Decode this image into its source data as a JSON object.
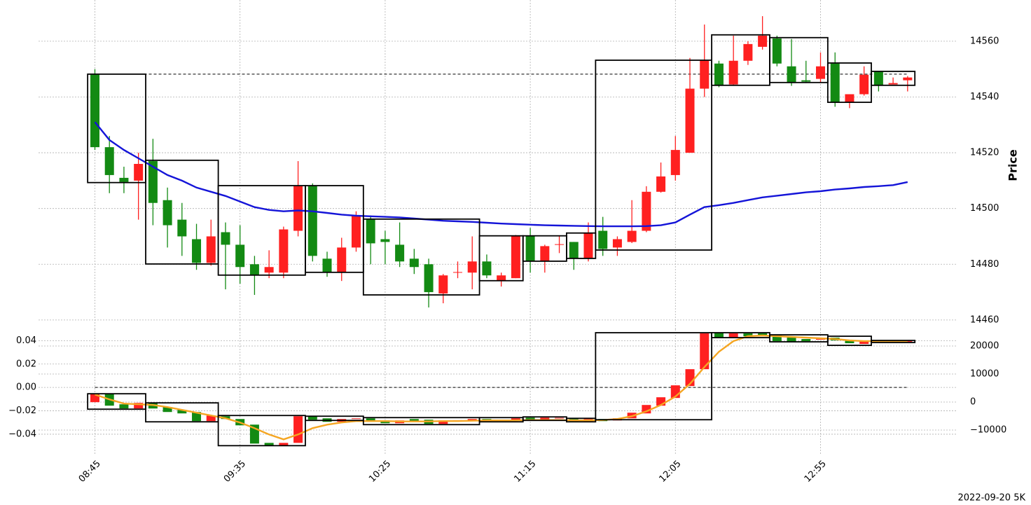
{
  "chart_data": [
    {
      "type": "candlestick",
      "ylabel": "Price",
      "axis_side": "right",
      "grid": true,
      "up_color": "#ff2020",
      "down_color": "#138a13",
      "ylim": [
        14456.7,
        14574.8
      ],
      "yticks": [
        14460,
        14480,
        14500,
        14520,
        14540,
        14560
      ],
      "open": [
        14548,
        14522,
        14511,
        14510,
        14517,
        14503,
        14496,
        14489,
        14480.5,
        14491.5,
        14487,
        14480,
        14477,
        14477,
        14492,
        14508,
        14482,
        14477,
        14486,
        14496,
        14489,
        14487,
        14482,
        14480,
        14469.5,
        14477,
        14477,
        14481,
        14474,
        14475,
        14490,
        14481,
        14487,
        14488,
        14482,
        14492,
        14486,
        14488,
        14492,
        14506,
        14512,
        14520,
        14543,
        14552,
        14544.5,
        14553,
        14558,
        14561,
        14551,
        14546,
        14546.5,
        14552,
        14538,
        14541,
        14549,
        14544.5,
        14546
      ],
      "high": [
        14550,
        14526,
        14515,
        14520,
        14525,
        14507.5,
        14502,
        14494.5,
        14496,
        14495,
        14494,
        14483,
        14485,
        14493.5,
        14517,
        14509,
        14484.5,
        14489.5,
        14499,
        14497.5,
        14492,
        14495,
        14485.5,
        14482,
        14476.5,
        14481,
        14490,
        14483.5,
        14477,
        14490.5,
        14493,
        14487,
        14490,
        14488,
        14495,
        14497,
        14490,
        14503,
        14508,
        14516.5,
        14526,
        14554,
        14566,
        14553,
        14562,
        14560,
        14569,
        14562,
        14560.8,
        14553,
        14556,
        14556,
        14541,
        14551,
        14549,
        14547,
        14547.5
      ],
      "low": [
        14521,
        14505.5,
        14505.5,
        14496,
        14494,
        14486,
        14483,
        14478,
        14479.5,
        14471,
        14473,
        14469,
        14475,
        14475,
        14490,
        14481,
        14475.5,
        14474,
        14484.5,
        14480,
        14480,
        14479,
        14476.5,
        14464.5,
        14466,
        14475,
        14471,
        14475,
        14472,
        14475,
        14477,
        14477,
        14484,
        14478,
        14481,
        14483,
        14483,
        14487.6,
        14491.5,
        14505.7,
        14510,
        14520,
        14540,
        14543.5,
        14544,
        14551.5,
        14557,
        14551,
        14544,
        14545,
        14545,
        14536.5,
        14536,
        14540.5,
        14542,
        14544.5,
        14542
      ],
      "close": [
        14522,
        14512,
        14509.5,
        14516,
        14502,
        14494,
        14490,
        14480.5,
        14490,
        14487,
        14479,
        14476,
        14479,
        14492.5,
        14508,
        14483,
        14477,
        14486,
        14497.5,
        14487.5,
        14488,
        14481,
        14479,
        14470,
        14476,
        14477.2,
        14481,
        14476,
        14476,
        14490,
        14481,
        14486.5,
        14487.2,
        14482,
        14491,
        14485.5,
        14489,
        14492,
        14506,
        14511.5,
        14521,
        14543,
        14553,
        14544,
        14553,
        14559,
        14562,
        14552,
        14545,
        14545.5,
        14551,
        14538,
        14541,
        14548,
        14544,
        14545,
        14547
      ],
      "line": {
        "color": "#1414d8",
        "values": [
          14531,
          14524.6,
          14521,
          14518,
          14515,
          14512,
          14510,
          14507.5,
          14506,
          14504.5,
          14502.5,
          14500.5,
          14499.5,
          14499,
          14499.3,
          14499,
          14498.4,
          14497.8,
          14497.4,
          14497.2,
          14497,
          14496.8,
          14496.4,
          14496,
          14495.6,
          14495.4,
          14495.2,
          14494.9,
          14494.6,
          14494.4,
          14494.2,
          14494,
          14493.9,
          14493.8,
          14493.7,
          14493.6,
          14493.6,
          14493.6,
          14493.7,
          14494,
          14495,
          14497.8,
          14500.5,
          14501.2,
          14502,
          14503,
          14504,
          14504.6,
          14505.2,
          14505.8,
          14506.2,
          14506.8,
          14507.2,
          14507.7,
          14508,
          14508.4,
          14509.5
        ]
      },
      "hline": 14548.2,
      "boxes": [
        {
          "start": 0,
          "end": 3,
          "top": 14548.2,
          "bottom": 14509.3
        },
        {
          "start": 4,
          "end": 8,
          "top": 14517.3,
          "bottom": 14480.1
        },
        {
          "start": 9,
          "end": 14,
          "top": 14508.2,
          "bottom": 14476.1
        },
        {
          "start": 15,
          "end": 18,
          "top": 14508.2,
          "bottom": 14477.1
        },
        {
          "start": 19,
          "end": 26,
          "top": 14496.2,
          "bottom": 14469
        },
        {
          "start": 27,
          "end": 29,
          "top": 14490.2,
          "bottom": 14474.1
        },
        {
          "start": 30,
          "end": 32,
          "top": 14490.2,
          "bottom": 14481.1
        },
        {
          "start": 33,
          "end": 34,
          "top": 14491.2,
          "bottom": 14482.1
        },
        {
          "start": 35,
          "end": 42,
          "top": 14553.2,
          "bottom": 14485.1
        },
        {
          "start": 43,
          "end": 46,
          "top": 14562.3,
          "bottom": 14544.2
        },
        {
          "start": 47,
          "end": 50,
          "top": 14561.3,
          "bottom": 14545.2
        },
        {
          "start": 51,
          "end": 53,
          "top": 14552.2,
          "bottom": 14538.1
        },
        {
          "start": 54,
          "end": 56,
          "top": 14549.2,
          "bottom": 14544.2
        }
      ]
    },
    {
      "type": "candlestick",
      "grid": true,
      "up_color": "#ff2020",
      "down_color": "#138a13",
      "categories": [
        "08:45",
        null,
        null,
        null,
        null,
        null,
        null,
        null,
        null,
        null,
        "09:35",
        null,
        null,
        null,
        null,
        null,
        null,
        null,
        null,
        null,
        "10:25",
        null,
        null,
        null,
        null,
        null,
        null,
        null,
        null,
        null,
        "11:15",
        null,
        null,
        null,
        null,
        null,
        null,
        null,
        null,
        null,
        "12:05",
        null,
        null,
        null,
        null,
        null,
        null,
        null,
        null,
        null,
        "12:55",
        null,
        null,
        null,
        null,
        null,
        null
      ],
      "ylim": [
        -0.058,
        0.0498
      ],
      "yticks": [
        {
          "value": -0.04,
          "label": "−0.04"
        },
        {
          "value": -0.02,
          "label": "−0.02"
        },
        {
          "value": 0,
          "label": "0.00"
        },
        0.02,
        0.04
      ],
      "y2lim": [
        -19000,
        26000
      ],
      "y2ticks": [
        {
          "value": -10000,
          "label": "−10000"
        },
        0,
        10000,
        20000
      ],
      "open": [
        -0.0126,
        -0.0054,
        -0.0144,
        -0.018,
        -0.0132,
        -0.0168,
        -0.0192,
        -0.021,
        -0.0288,
        -0.0246,
        -0.027,
        -0.0318,
        -0.0474,
        -0.0498,
        -0.0474,
        -0.0246,
        -0.0264,
        -0.0294,
        -0.027,
        -0.0264,
        -0.0282,
        -0.0306,
        -0.027,
        -0.0276,
        -0.0312,
        -0.028,
        -0.0288,
        -0.027,
        -0.0276,
        -0.0282,
        -0.0258,
        -0.0276,
        -0.026,
        -0.027,
        -0.0288,
        -0.027,
        -0.0282,
        -0.0264,
        -0.0222,
        -0.0156,
        -0.009,
        0.0012,
        0.0156,
        0.0468,
        0.0426,
        0.0462,
        0.0462,
        0.045,
        0.0426,
        0.0414,
        0.0408,
        0.0426,
        0.0402,
        0.0372,
        0.0402,
        0.039,
        0.0396
      ],
      "close": [
        -0.0054,
        -0.0156,
        -0.018,
        -0.0132,
        -0.018,
        -0.021,
        -0.0222,
        -0.0288,
        -0.024,
        -0.027,
        -0.0324,
        -0.048,
        -0.0498,
        -0.0474,
        -0.0246,
        -0.0276,
        -0.0294,
        -0.027,
        -0.0264,
        -0.0294,
        -0.0306,
        -0.0282,
        -0.0288,
        -0.0312,
        -0.0282,
        -0.028,
        -0.027,
        -0.0288,
        -0.0282,
        -0.0264,
        -0.0276,
        -0.0258,
        -0.026,
        -0.0288,
        -0.027,
        -0.0288,
        -0.0264,
        -0.0216,
        -0.015,
        -0.0084,
        0.0018,
        0.0156,
        0.0462,
        0.0426,
        0.0462,
        0.0438,
        0.044,
        0.0396,
        0.039,
        0.0396,
        0.0426,
        0.0402,
        0.0378,
        0.0396,
        0.039,
        0.0396,
        0.0396
      ],
      "line": {
        "color": "#f5a623",
        "values": [
          -0.006,
          -0.0102,
          -0.0138,
          -0.0144,
          -0.015,
          -0.0168,
          -0.0192,
          -0.0216,
          -0.024,
          -0.0264,
          -0.03,
          -0.0348,
          -0.0402,
          -0.0444,
          -0.0402,
          -0.0348,
          -0.0318,
          -0.03,
          -0.0288,
          -0.0288,
          -0.0288,
          -0.0291,
          -0.0291,
          -0.0291,
          -0.0288,
          -0.0288,
          -0.0285,
          -0.0282,
          -0.0282,
          -0.0282,
          -0.0279,
          -0.0279,
          -0.0279,
          -0.0282,
          -0.0282,
          -0.0279,
          -0.027,
          -0.0246,
          -0.0204,
          -0.015,
          -0.0078,
          0.003,
          0.0174,
          0.0306,
          0.0396,
          0.0438,
          0.0444,
          0.0438,
          0.0432,
          0.0426,
          0.042,
          0.0414,
          0.0402,
          0.0396,
          0.0396,
          0.0396,
          0.0396
        ]
      },
      "hline": 0,
      "boxes": [
        {
          "start": 0,
          "end": 3,
          "top": -0.0054,
          "bottom": -0.0186
        },
        {
          "start": 4,
          "end": 8,
          "top": -0.0132,
          "bottom": -0.0294
        },
        {
          "start": 9,
          "end": 14,
          "top": -0.024,
          "bottom": -0.0498
        },
        {
          "start": 15,
          "end": 18,
          "top": -0.0246,
          "bottom": -0.0282
        },
        {
          "start": 19,
          "end": 26,
          "top": -0.0258,
          "bottom": -0.0318
        },
        {
          "start": 27,
          "end": 29,
          "top": -0.0258,
          "bottom": -0.0294
        },
        {
          "start": 30,
          "end": 32,
          "top": -0.0252,
          "bottom": -0.0282
        },
        {
          "start": 33,
          "end": 34,
          "top": -0.0264,
          "bottom": -0.0294
        },
        {
          "start": 35,
          "end": 42,
          "top": 0.0468,
          "bottom": -0.0276
        },
        {
          "start": 43,
          "end": 46,
          "top": 0.0468,
          "bottom": 0.0426
        },
        {
          "start": 47,
          "end": 50,
          "top": 0.045,
          "bottom": 0.039
        },
        {
          "start": 51,
          "end": 53,
          "top": 0.0438,
          "bottom": 0.036
        },
        {
          "start": 54,
          "end": 56,
          "top": 0.0402,
          "bottom": 0.0384
        }
      ]
    }
  ],
  "footer": "2022-09-20 5K"
}
